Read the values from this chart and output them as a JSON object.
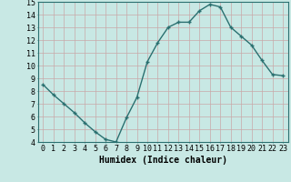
{
  "x": [
    0,
    1,
    2,
    3,
    4,
    5,
    6,
    7,
    8,
    9,
    10,
    11,
    12,
    13,
    14,
    15,
    16,
    17,
    18,
    19,
    20,
    21,
    22,
    23
  ],
  "y": [
    8.5,
    7.7,
    7.0,
    6.3,
    5.5,
    4.8,
    4.2,
    4.0,
    5.9,
    7.5,
    10.3,
    11.8,
    13.0,
    13.4,
    13.4,
    14.3,
    14.8,
    14.6,
    13.0,
    12.3,
    11.6,
    10.4,
    9.3,
    9.2
  ],
  "line_color": "#2a7070",
  "marker": "+",
  "marker_size": 3,
  "marker_color": "#2a7070",
  "bg_color": "#c8e8e4",
  "grid_color": "#b0d0cc",
  "xlabel": "Humidex (Indice chaleur)",
  "ylim": [
    4,
    15
  ],
  "xlim": [
    -0.5,
    23.5
  ],
  "yticks": [
    4,
    5,
    6,
    7,
    8,
    9,
    10,
    11,
    12,
    13,
    14,
    15
  ],
  "xticks": [
    0,
    1,
    2,
    3,
    4,
    5,
    6,
    7,
    8,
    9,
    10,
    11,
    12,
    13,
    14,
    15,
    16,
    17,
    18,
    19,
    20,
    21,
    22,
    23
  ],
  "xlabel_fontsize": 7,
  "tick_fontsize": 6,
  "line_width": 1.0
}
